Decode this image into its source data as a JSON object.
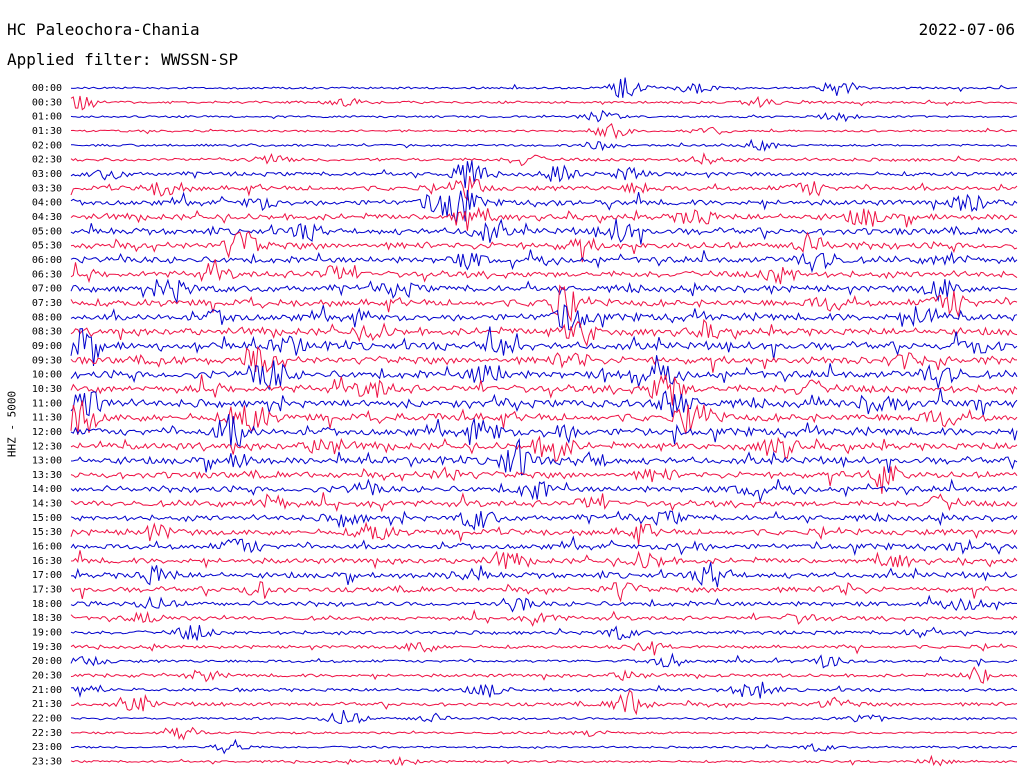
{
  "header": {
    "station": "HC Paleochora-Chania",
    "date": "2022-07-06",
    "filter": "Applied filter: WWSSN-SP"
  },
  "chart_data": {
    "type": "line",
    "chart_kind": "helicorder",
    "ylabel": "HHZ - 5000",
    "trace_colors": [
      "#0000cc",
      "#ee1144"
    ],
    "grid": false,
    "rows": [
      {
        "label": "00:00",
        "activity": 0.1,
        "events": [
          [
            0.585,
            1.0
          ],
          [
            0.81,
            0.8
          ],
          [
            0.66,
            0.5
          ]
        ]
      },
      {
        "label": "00:30",
        "activity": 0.15,
        "events": [
          [
            0.01,
            0.7
          ],
          [
            0.73,
            0.4
          ],
          [
            0.29,
            0.3
          ]
        ]
      },
      {
        "label": "01:00",
        "activity": 0.1,
        "events": [
          [
            0.56,
            0.5
          ],
          [
            0.81,
            0.4
          ]
        ]
      },
      {
        "label": "01:30",
        "activity": 0.1,
        "events": [
          [
            0.57,
            0.7
          ],
          [
            0.68,
            0.3
          ]
        ]
      },
      {
        "label": "02:00",
        "activity": 0.12,
        "events": [
          [
            0.56,
            0.4
          ],
          [
            0.73,
            0.4
          ]
        ]
      },
      {
        "label": "02:30",
        "activity": 0.25,
        "events": [
          [
            0.21,
            0.4
          ],
          [
            0.48,
            0.5
          ],
          [
            0.67,
            0.4
          ]
        ]
      },
      {
        "label": "03:00",
        "activity": 0.35,
        "events": [
          [
            0.42,
            1.2
          ],
          [
            0.52,
            0.6
          ],
          [
            0.59,
            0.5
          ],
          [
            0.04,
            0.4
          ]
        ]
      },
      {
        "label": "03:30",
        "activity": 0.45,
        "events": [
          [
            0.1,
            0.8
          ],
          [
            0.42,
            0.9
          ],
          [
            0.78,
            0.7
          ],
          [
            0.6,
            0.4
          ]
        ]
      },
      {
        "label": "04:00",
        "activity": 0.55,
        "events": [
          [
            0.41,
            1.6
          ],
          [
            0.39,
            1.0
          ],
          [
            0.95,
            0.9
          ],
          [
            0.2,
            0.5
          ]
        ]
      },
      {
        "label": "04:30",
        "activity": 0.6,
        "events": [
          [
            0.42,
            1.2
          ],
          [
            0.66,
            0.8
          ],
          [
            0.84,
            0.8
          ]
        ]
      },
      {
        "label": "05:00",
        "activity": 0.65,
        "events": [
          [
            0.58,
            0.9
          ],
          [
            0.44,
            0.8
          ],
          [
            0.25,
            0.6
          ]
        ]
      },
      {
        "label": "05:30",
        "activity": 0.7,
        "events": [
          [
            0.18,
            1.3
          ],
          [
            0.78,
            0.8
          ],
          [
            0.54,
            0.5
          ]
        ]
      },
      {
        "label": "06:00",
        "activity": 0.65,
        "events": [
          [
            0.79,
            1.2
          ],
          [
            0.42,
            0.6
          ],
          [
            0.93,
            0.6
          ]
        ]
      },
      {
        "label": "06:30",
        "activity": 0.65,
        "events": [
          [
            0.28,
            0.8
          ],
          [
            0.75,
            0.7
          ],
          [
            0.15,
            0.5
          ]
        ]
      },
      {
        "label": "07:00",
        "activity": 0.65,
        "events": [
          [
            0.11,
            1.0
          ],
          [
            0.92,
            0.9
          ],
          [
            0.35,
            0.5
          ]
        ]
      },
      {
        "label": "07:30",
        "activity": 0.7,
        "events": [
          [
            0.52,
            1.3
          ],
          [
            0.93,
            1.2
          ],
          [
            0.8,
            0.6
          ]
        ]
      },
      {
        "label": "08:00",
        "activity": 0.75,
        "events": [
          [
            0.53,
            1.4
          ],
          [
            0.9,
            0.9
          ],
          [
            0.16,
            0.5
          ]
        ]
      },
      {
        "label": "08:30",
        "activity": 0.75,
        "events": [
          [
            0.54,
            1.2
          ],
          [
            0.32,
            0.6
          ],
          [
            0.67,
            0.5
          ]
        ]
      },
      {
        "label": "09:00",
        "activity": 0.8,
        "events": [
          [
            0.01,
            1.4
          ],
          [
            0.45,
            0.9
          ],
          [
            0.23,
            0.7
          ],
          [
            0.96,
            0.6
          ]
        ]
      },
      {
        "label": "09:30",
        "activity": 0.75,
        "events": [
          [
            0.2,
            1.0
          ],
          [
            0.53,
            0.8
          ],
          [
            0.88,
            0.6
          ]
        ]
      },
      {
        "label": "10:00",
        "activity": 0.8,
        "events": [
          [
            0.21,
            1.4
          ],
          [
            0.44,
            1.0
          ],
          [
            0.92,
            1.3
          ],
          [
            0.62,
            0.7
          ]
        ]
      },
      {
        "label": "10:30",
        "activity": 0.8,
        "events": [
          [
            0.63,
            1.5
          ],
          [
            0.32,
            0.8
          ],
          [
            0.78,
            0.6
          ]
        ]
      },
      {
        "label": "11:00",
        "activity": 0.8,
        "events": [
          [
            0.02,
            1.4
          ],
          [
            0.64,
            1.2
          ],
          [
            0.85,
            0.8
          ]
        ]
      },
      {
        "label": "11:30",
        "activity": 0.8,
        "events": [
          [
            0.01,
            1.5
          ],
          [
            0.19,
            1.2
          ],
          [
            0.66,
            1.2
          ],
          [
            0.92,
            0.7
          ]
        ]
      },
      {
        "label": "12:00",
        "activity": 0.8,
        "events": [
          [
            0.17,
            1.5
          ],
          [
            0.44,
            0.8
          ],
          [
            0.52,
            0.7
          ]
        ]
      },
      {
        "label": "12:30",
        "activity": 0.75,
        "events": [
          [
            0.51,
            1.4
          ],
          [
            0.75,
            1.0
          ],
          [
            0.27,
            0.8
          ]
        ]
      },
      {
        "label": "13:00",
        "activity": 0.7,
        "events": [
          [
            0.47,
            1.5
          ],
          [
            0.55,
            0.7
          ],
          [
            0.18,
            0.6
          ]
        ]
      },
      {
        "label": "13:30",
        "activity": 0.65,
        "events": [
          [
            0.86,
            1.2
          ],
          [
            0.4,
            0.6
          ],
          [
            0.62,
            0.5
          ]
        ]
      },
      {
        "label": "14:00",
        "activity": 0.6,
        "events": [
          [
            0.49,
            0.8
          ],
          [
            0.31,
            0.5
          ],
          [
            0.72,
            0.5
          ]
        ]
      },
      {
        "label": "14:30",
        "activity": 0.6,
        "events": [
          [
            0.21,
            0.7
          ],
          [
            0.55,
            0.6
          ],
          [
            0.92,
            0.6
          ]
        ]
      },
      {
        "label": "15:00",
        "activity": 0.55,
        "events": [
          [
            0.43,
            0.9
          ],
          [
            0.29,
            0.6
          ],
          [
            0.63,
            0.5
          ]
        ]
      },
      {
        "label": "15:30",
        "activity": 0.6,
        "events": [
          [
            0.32,
            0.8
          ],
          [
            0.09,
            0.6
          ],
          [
            0.6,
            0.6
          ]
        ]
      },
      {
        "label": "16:00",
        "activity": 0.55,
        "events": [
          [
            0.18,
            0.8
          ],
          [
            0.65,
            0.6
          ],
          [
            0.95,
            0.5
          ]
        ]
      },
      {
        "label": "16:30",
        "activity": 0.55,
        "events": [
          [
            0.46,
            0.7
          ],
          [
            0.61,
            0.8
          ],
          [
            0.87,
            0.5
          ]
        ]
      },
      {
        "label": "17:00",
        "activity": 0.55,
        "events": [
          [
            0.68,
            1.1
          ],
          [
            0.09,
            0.8
          ],
          [
            0.42,
            0.5
          ]
        ]
      },
      {
        "label": "17:30",
        "activity": 0.5,
        "events": [
          [
            0.58,
            0.8
          ],
          [
            0.2,
            0.6
          ],
          [
            0.82,
            0.5
          ]
        ]
      },
      {
        "label": "18:00",
        "activity": 0.45,
        "events": [
          [
            0.47,
            0.6
          ],
          [
            0.09,
            0.5
          ],
          [
            0.95,
            0.5
          ]
        ]
      },
      {
        "label": "18:30",
        "activity": 0.35,
        "events": [
          [
            0.08,
            0.5
          ],
          [
            0.5,
            0.4
          ],
          [
            0.77,
            0.4
          ]
        ]
      },
      {
        "label": "19:00",
        "activity": 0.3,
        "events": [
          [
            0.13,
            0.7
          ],
          [
            0.58,
            0.5
          ],
          [
            0.9,
            0.4
          ]
        ]
      },
      {
        "label": "19:30",
        "activity": 0.25,
        "events": [
          [
            0.37,
            0.5
          ],
          [
            0.61,
            0.4
          ]
        ]
      },
      {
        "label": "20:00",
        "activity": 0.2,
        "events": [
          [
            0.63,
            0.6
          ],
          [
            0.8,
            0.5
          ],
          [
            0.02,
            0.4
          ]
        ]
      },
      {
        "label": "20:30",
        "activity": 0.25,
        "events": [
          [
            0.14,
            0.5
          ],
          [
            0.96,
            0.7
          ],
          [
            0.59,
            0.4
          ]
        ]
      },
      {
        "label": "21:00",
        "activity": 0.25,
        "events": [
          [
            0.72,
            1.0
          ],
          [
            0.44,
            0.6
          ],
          [
            0.01,
            0.5
          ]
        ]
      },
      {
        "label": "21:30",
        "activity": 0.3,
        "events": [
          [
            0.59,
            1.2
          ],
          [
            0.07,
            0.6
          ],
          [
            0.81,
            0.5
          ]
        ]
      },
      {
        "label": "22:00",
        "activity": 0.15,
        "events": [
          [
            0.29,
            0.8
          ],
          [
            0.38,
            0.4
          ],
          [
            0.84,
            0.4
          ]
        ]
      },
      {
        "label": "22:30",
        "activity": 0.12,
        "events": [
          [
            0.12,
            0.5
          ],
          [
            0.55,
            0.3
          ]
        ]
      },
      {
        "label": "23:00",
        "activity": 0.1,
        "events": [
          [
            0.17,
            0.6
          ],
          [
            0.79,
            0.3
          ]
        ]
      },
      {
        "label": "23:30",
        "activity": 0.12,
        "events": [
          [
            0.91,
            0.4
          ],
          [
            0.35,
            0.3
          ]
        ]
      }
    ]
  }
}
